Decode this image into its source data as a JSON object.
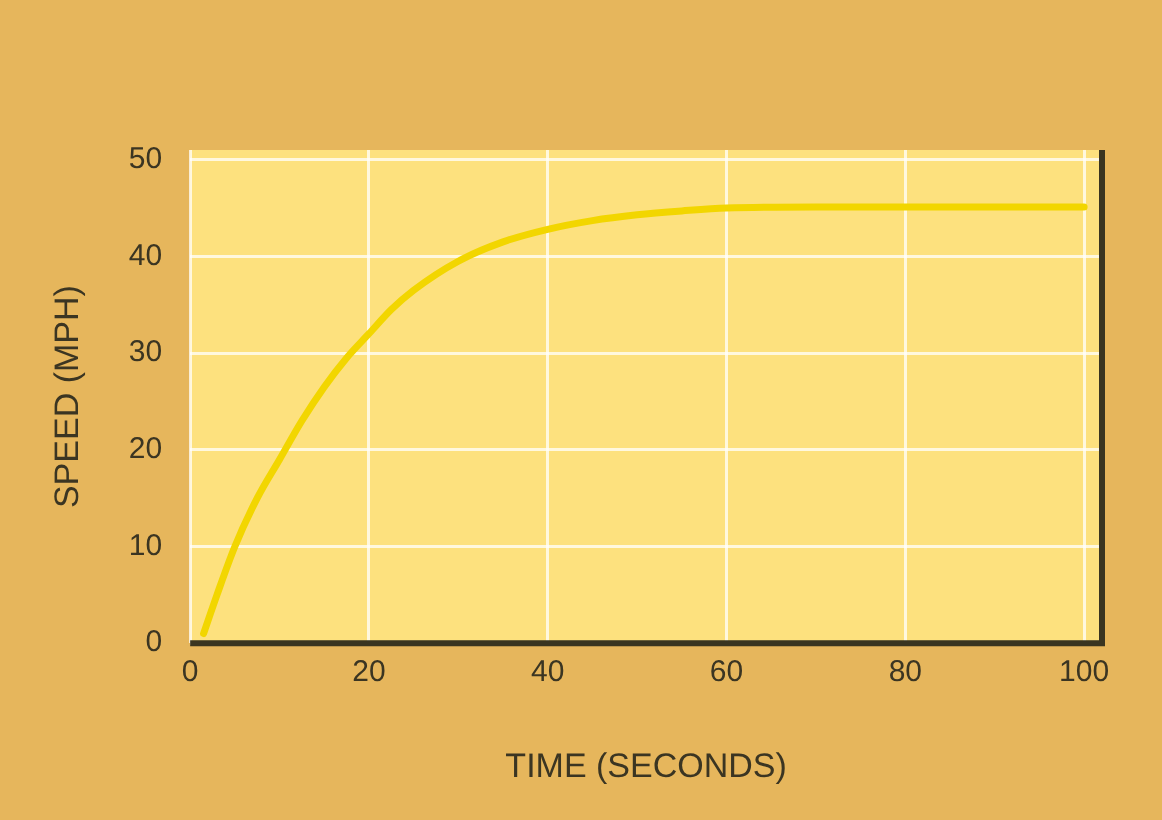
{
  "chart_data": {
    "type": "line",
    "xlabel": "TIME (SECONDS)",
    "ylabel": "SPEED (MPH)",
    "x": [
      1.5,
      3,
      5,
      7.5,
      10,
      12.5,
      15,
      17.5,
      20,
      22.5,
      25,
      30,
      35,
      40,
      45,
      50,
      55,
      60,
      70,
      80,
      90,
      100
    ],
    "series": [
      {
        "color": "#f2d600",
        "values": [
          1,
          5,
          10,
          15,
          19,
          23,
          26.5,
          29.5,
          32,
          34.5,
          36.5,
          39.5,
          41.5,
          42.8,
          43.7,
          44.3,
          44.7,
          45,
          45.1,
          45.1,
          45.1,
          45.1
        ]
      }
    ],
    "xlim": [
      0,
      102
    ],
    "ylim": [
      0,
      51
    ],
    "xticks": [
      0,
      20,
      40,
      60,
      80,
      100
    ],
    "yticks": [
      0,
      10,
      20,
      30,
      40,
      50
    ],
    "grid": true,
    "legend": false,
    "marker": "none",
    "line_style": "solid"
  }
}
